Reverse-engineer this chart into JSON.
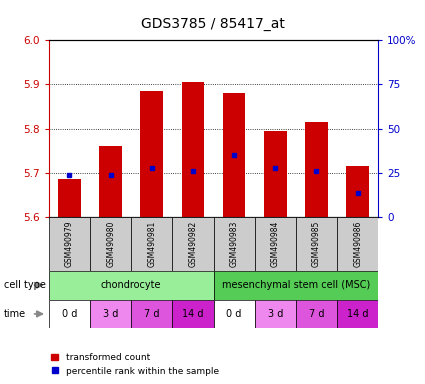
{
  "title": "GDS3785 / 85417_at",
  "samples": [
    "GSM490979",
    "GSM490980",
    "GSM490981",
    "GSM490982",
    "GSM490983",
    "GSM490984",
    "GSM490985",
    "GSM490986"
  ],
  "bar_tops": [
    5.685,
    5.76,
    5.885,
    5.905,
    5.88,
    5.795,
    5.815,
    5.715
  ],
  "bar_bottoms": [
    5.6,
    5.6,
    5.6,
    5.6,
    5.6,
    5.6,
    5.6,
    5.6
  ],
  "percentile_values": [
    5.695,
    5.695,
    5.71,
    5.705,
    5.74,
    5.71,
    5.705,
    5.655
  ],
  "ylim": [
    5.6,
    6.0
  ],
  "yticks_left": [
    5.6,
    5.7,
    5.8,
    5.9,
    6.0
  ],
  "yticks_right_vals": [
    0,
    25,
    50,
    75,
    100
  ],
  "yticks_right_labels": [
    "0",
    "25",
    "50",
    "75",
    "100%"
  ],
  "bar_color": "#cc0000",
  "percentile_color": "#0000cc",
  "cell_type_groups": [
    {
      "label": "chondrocyte",
      "start": 0,
      "end": 4,
      "color": "#99ee99"
    },
    {
      "label": "mesenchymal stem cell (MSC)",
      "start": 4,
      "end": 8,
      "color": "#55cc55"
    }
  ],
  "time_labels": [
    "0 d",
    "3 d",
    "7 d",
    "14 d",
    "0 d",
    "3 d",
    "7 d",
    "14 d"
  ],
  "time_colors": [
    "#ffffff",
    "#ee88ee",
    "#dd55dd",
    "#cc22cc",
    "#ffffff",
    "#ee88ee",
    "#dd55dd",
    "#cc22cc"
  ],
  "cell_type_label": "cell type",
  "time_label": "time",
  "legend_bar_label": "transformed count",
  "legend_pct_label": "percentile rank within the sample",
  "bg_color": "#ffffff",
  "sample_bg_color": "#cccccc",
  "left_axis_color": "#cc0000",
  "right_axis_color": "#0000cc"
}
